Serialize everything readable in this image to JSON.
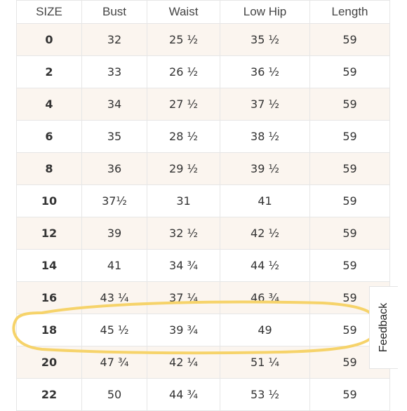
{
  "table": {
    "headers": [
      "SIZE",
      "Bust",
      "Waist",
      "Low Hip",
      "Length"
    ],
    "rows": [
      [
        "0",
        "32",
        "25 ½",
        "35 ½",
        "59"
      ],
      [
        "2",
        "33",
        "26 ½",
        "36 ½",
        "59"
      ],
      [
        "4",
        "34",
        "27 ½",
        "37 ½",
        "59"
      ],
      [
        "6",
        "35",
        "28 ½",
        "38 ½",
        "59"
      ],
      [
        "8",
        "36",
        "29 ½",
        "39 ½",
        "59"
      ],
      [
        "10",
        "37½",
        "31",
        "41",
        "59"
      ],
      [
        "12",
        "39",
        "32 ½",
        "42 ½",
        "59"
      ],
      [
        "14",
        "41",
        "34 ¾",
        "44 ½",
        "59"
      ],
      [
        "16",
        "43 ¼",
        "37 ¼",
        "46 ¾",
        "59"
      ],
      [
        "18",
        "45 ½",
        "39 ¾",
        "49",
        "59"
      ],
      [
        "20",
        "47 ¾",
        "42 ¼",
        "51 ¼",
        "59"
      ],
      [
        "22",
        "50",
        "44 ¾",
        "53 ½",
        "59"
      ]
    ]
  },
  "highlight": {
    "row_size": "18",
    "color": "#f6d36a"
  },
  "feedback": {
    "label": "Feedback"
  },
  "colors": {
    "stripe": "#fbf5ef",
    "border": "#e6e6e6",
    "text": "#333333"
  }
}
